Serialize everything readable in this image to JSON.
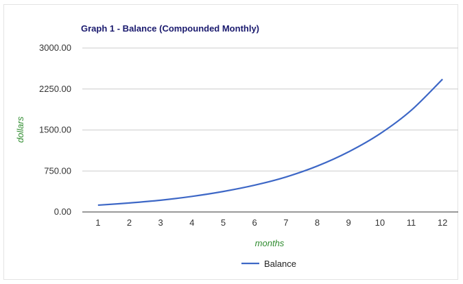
{
  "chart_data": {
    "type": "line",
    "title": "Graph 1 - Balance (Compounded Monthly)",
    "xlabel": "months",
    "ylabel": "dollars",
    "categories": [
      "1",
      "2",
      "3",
      "4",
      "5",
      "6",
      "7",
      "8",
      "9",
      "10",
      "11",
      "12"
    ],
    "series": [
      {
        "name": "Balance",
        "color": "#3d67c6",
        "values": [
          125,
          165,
          215,
          285,
          375,
          490,
          640,
          840,
          1100,
          1430,
          1860,
          2430
        ]
      }
    ],
    "ylim": [
      0,
      3000
    ],
    "yticks": [
      "0.00",
      "750.00",
      "1500.00",
      "2250.00",
      "3000.00"
    ],
    "ytick_values": [
      0,
      750,
      1500,
      2250,
      3000
    ],
    "grid": true,
    "legend_position": "bottom"
  }
}
